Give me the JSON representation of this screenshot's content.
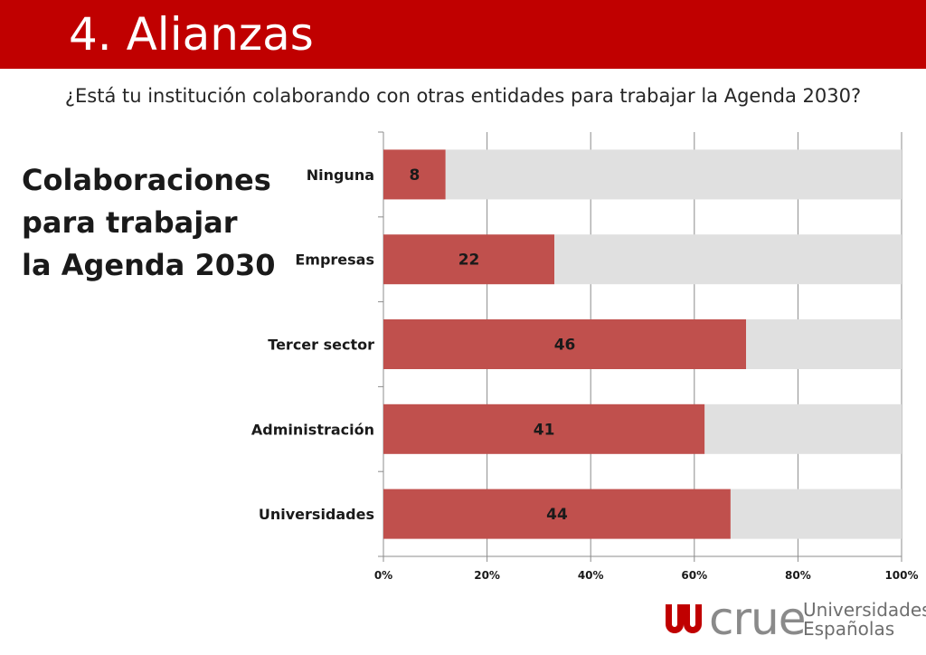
{
  "header": {
    "title": "4. Alianzas",
    "bar_color": "#c00000"
  },
  "question": "¿Está tu institución colaborando con otras entidades para trabajar la Agenda 2030?",
  "side_heading": {
    "lines": [
      "Colaboraciones",
      "para trabajar",
      "la Agenda 2030"
    ]
  },
  "chart_data": {
    "type": "bar",
    "orientation": "horizontal",
    "stacked": true,
    "categories": [
      "Ninguna",
      "Empresas",
      "Tercer sector",
      "Administración",
      "Universidades"
    ],
    "series": [
      {
        "values": [
          12,
          33,
          70,
          62,
          67
        ],
        "labels": [
          "8",
          "22",
          "46",
          "41",
          "44"
        ],
        "color": "#c0504d"
      },
      {
        "values": [
          88,
          67,
          30,
          38,
          33
        ],
        "color": "#e0e0e0"
      }
    ],
    "x_ticks": [
      "0%",
      "20%",
      "40%",
      "60%",
      "80%",
      "100%"
    ],
    "xlim": [
      0,
      100
    ],
    "grid": "vertical"
  },
  "logo": {
    "word": "crue",
    "sub_lines": [
      "Universidades",
      "Españolas"
    ],
    "mark_color": "#c00000"
  }
}
